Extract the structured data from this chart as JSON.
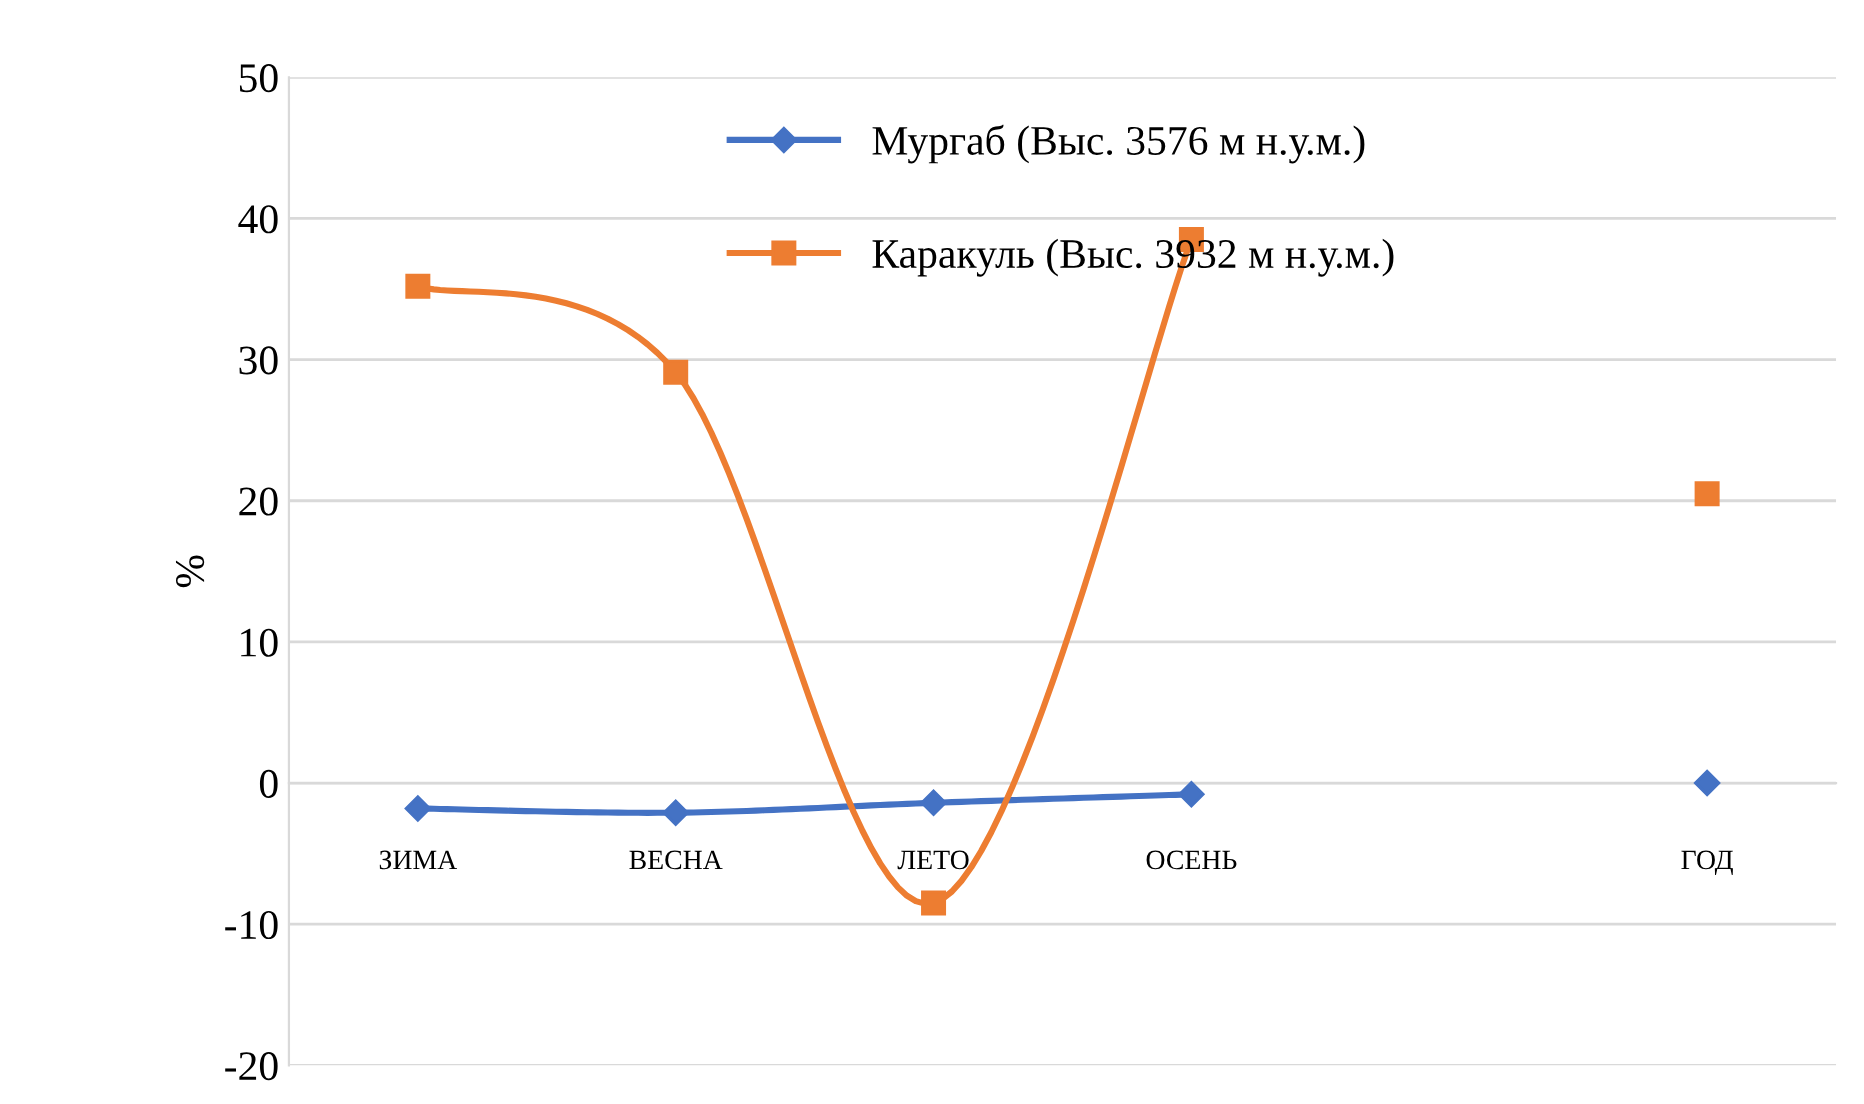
{
  "chart_data": {
    "type": "line",
    "ylabel": "%",
    "categories": [
      "ЗИМА",
      "ВЕСНА",
      "ЛЕТО",
      "ОСЕНЬ",
      null,
      "ГОД"
    ],
    "series": [
      {
        "name": "Мургаб (Выс. 3576 м н.у.м.)",
        "color": "#4472c4",
        "marker": "diamond",
        "values": [
          -1.8,
          -2.1,
          -1.4,
          -0.8,
          null,
          0.0
        ]
      },
      {
        "name": "Каракуль (Выс. 3932 м н.у.м.)",
        "color": "#ed7d31",
        "marker": "square",
        "values": [
          35.2,
          29.1,
          -8.5,
          38.5,
          null,
          20.5
        ]
      }
    ],
    "ylim": [
      -20,
      50
    ],
    "yticks": [
      -20,
      -10,
      0,
      10,
      20,
      30,
      40,
      50
    ],
    "grid": "y",
    "legend": "top"
  }
}
